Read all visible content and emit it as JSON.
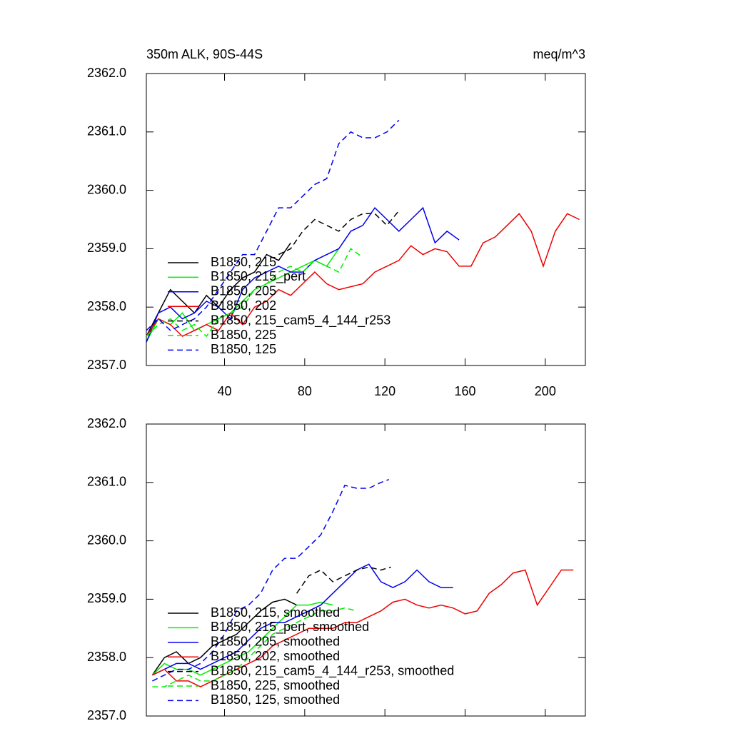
{
  "chart_data": [
    {
      "type": "line",
      "title": "350m ALK, 90S-44S",
      "right_title": "meq/m^3",
      "xlim": [
        1,
        220
      ],
      "xticks": [
        40,
        80,
        120,
        160,
        200
      ],
      "ylim": [
        2357,
        2362
      ],
      "yticks": [
        {
          "value": 2357,
          "label": "2357.0"
        },
        {
          "value": 2358,
          "label": "2358.0"
        },
        {
          "value": 2359,
          "label": "2359.0"
        },
        {
          "value": 2360,
          "label": "2360.0"
        },
        {
          "value": 2361,
          "label": "2361.0"
        },
        {
          "value": 2362,
          "label": "2362.0"
        }
      ],
      "series": [
        {
          "name": "B1850, 215",
          "color": "#000000",
          "dash": false,
          "x": [
            1,
            7,
            13,
            19,
            25,
            31,
            37,
            43,
            49,
            55,
            61,
            67,
            73
          ],
          "values": [
            2357.5,
            2357.9,
            2358.3,
            2358.1,
            2357.9,
            2358.2,
            2358.0,
            2358.3,
            2358.5,
            2358.6,
            2358.9,
            2358.8,
            2359.1
          ]
        },
        {
          "name": "B1850, 215_pert",
          "color": "#00ee00",
          "dash": false,
          "x": [
            1,
            7,
            13,
            19,
            25,
            31,
            37,
            43,
            49,
            55,
            61,
            67,
            73,
            79,
            85,
            91,
            97
          ],
          "values": [
            2357.4,
            2357.8,
            2357.7,
            2357.9,
            2357.6,
            2357.7,
            2357.8,
            2357.9,
            2358.1,
            2358.3,
            2358.4,
            2358.5,
            2358.6,
            2358.7,
            2358.8,
            2358.7,
            2359.0
          ]
        },
        {
          "name": "B1850, 205",
          "color": "#0000ee",
          "dash": false,
          "x": [
            1,
            7,
            13,
            19,
            25,
            31,
            37,
            43,
            49,
            55,
            61,
            67,
            73,
            79,
            85,
            91,
            97,
            103,
            109,
            115,
            121,
            127,
            133,
            139,
            145,
            151,
            157
          ],
          "values": [
            2357.4,
            2357.9,
            2358.0,
            2357.8,
            2357.9,
            2358.1,
            2358.0,
            2357.8,
            2358.3,
            2358.5,
            2358.6,
            2358.7,
            2358.6,
            2358.6,
            2358.8,
            2358.9,
            2359.0,
            2359.3,
            2359.4,
            2359.7,
            2359.5,
            2359.3,
            2359.5,
            2359.7,
            2359.1,
            2359.3,
            2359.15
          ]
        },
        {
          "name": "B1850, 202",
          "color": "#ee0000",
          "dash": false,
          "x": [
            1,
            7,
            13,
            19,
            25,
            31,
            37,
            43,
            49,
            55,
            61,
            67,
            73,
            79,
            85,
            91,
            97,
            103,
            109,
            115,
            121,
            127,
            133,
            139,
            145,
            151,
            157,
            163,
            169,
            175,
            181,
            187,
            193,
            199,
            205,
            211,
            217
          ],
          "values": [
            2357.5,
            2357.8,
            2357.7,
            2357.5,
            2357.6,
            2357.7,
            2357.6,
            2357.9,
            2357.7,
            2358.0,
            2358.1,
            2358.3,
            2358.2,
            2358.4,
            2358.6,
            2358.4,
            2358.3,
            2358.35,
            2358.4,
            2358.6,
            2358.7,
            2358.8,
            2359.05,
            2358.9,
            2359.0,
            2358.95,
            2358.7,
            2358.7,
            2359.1,
            2359.2,
            2359.4,
            2359.6,
            2359.3,
            2358.7,
            2359.3,
            2359.6,
            2359.5
          ]
        },
        {
          "name": "B1850, 215_cam5_4_144_r253",
          "color": "#000000",
          "dash": true,
          "x": [
            67,
            73,
            79,
            85,
            91,
            97,
            103,
            109,
            115,
            121,
            127
          ],
          "values": [
            2358.9,
            2359.0,
            2359.3,
            2359.5,
            2359.4,
            2359.3,
            2359.5,
            2359.6,
            2359.6,
            2359.4,
            2359.65
          ]
        },
        {
          "name": "B1850, 225",
          "color": "#00ee00",
          "dash": true,
          "x": [
            1,
            7,
            13,
            19,
            25,
            31,
            37,
            43,
            49,
            55,
            61,
            67,
            73,
            79,
            85,
            91,
            97,
            103,
            109
          ],
          "values": [
            2357.5,
            2357.7,
            2357.8,
            2357.6,
            2357.7,
            2357.5,
            2357.8,
            2357.9,
            2358.0,
            2358.3,
            2358.4,
            2358.6,
            2358.7,
            2358.6,
            2358.8,
            2358.7,
            2358.6,
            2359.0,
            2358.85
          ]
        },
        {
          "name": "B1850, 125",
          "color": "#0000ee",
          "dash": true,
          "x": [
            1,
            7,
            13,
            19,
            25,
            31,
            37,
            43,
            49,
            55,
            61,
            67,
            73,
            79,
            85,
            91,
            97,
            103,
            109,
            115,
            121,
            127
          ],
          "values": [
            2357.6,
            2357.8,
            2357.6,
            2357.7,
            2357.8,
            2358.0,
            2358.3,
            2358.6,
            2358.9,
            2358.9,
            2359.3,
            2359.7,
            2359.7,
            2359.9,
            2360.1,
            2360.2,
            2360.8,
            2361.0,
            2360.9,
            2360.9,
            2361.0,
            2361.2
          ]
        }
      ]
    },
    {
      "type": "line",
      "xlim": [
        1,
        220
      ],
      "xticks": [
        40,
        80,
        120,
        160,
        200
      ],
      "ylim": [
        2357,
        2362
      ],
      "yticks": [
        {
          "value": 2357,
          "label": "2357.0"
        },
        {
          "value": 2358,
          "label": "2358.0"
        },
        {
          "value": 2359,
          "label": "2359.0"
        },
        {
          "value": 2360,
          "label": "2360.0"
        },
        {
          "value": 2361,
          "label": "2361.0"
        },
        {
          "value": 2362,
          "label": "2362.0"
        }
      ],
      "series": [
        {
          "name": "B1850, 215, smoothed",
          "color": "#000000",
          "dash": false,
          "x": [
            4,
            10,
            16,
            22,
            28,
            34,
            40,
            46,
            52,
            58,
            64,
            70,
            76
          ],
          "values": [
            2357.7,
            2358.0,
            2358.1,
            2357.9,
            2358.0,
            2358.2,
            2358.3,
            2358.4,
            2358.6,
            2358.8,
            2358.95,
            2359.0,
            2358.9
          ]
        },
        {
          "name": "B1850, 215_pert, smoothed",
          "color": "#00ee00",
          "dash": false,
          "x": [
            4,
            10,
            16,
            22,
            28,
            34,
            40,
            46,
            52,
            58,
            64,
            70,
            76,
            82,
            88,
            94
          ],
          "values": [
            2357.7,
            2357.9,
            2357.8,
            2357.8,
            2357.7,
            2357.8,
            2357.9,
            2358.0,
            2358.1,
            2358.3,
            2358.5,
            2358.7,
            2358.9,
            2358.9,
            2358.95,
            2358.9
          ]
        },
        {
          "name": "B1850, 205, smoothed",
          "color": "#0000ee",
          "dash": false,
          "x": [
            4,
            10,
            16,
            22,
            28,
            34,
            40,
            46,
            52,
            58,
            64,
            70,
            76,
            82,
            88,
            94,
            100,
            106,
            112,
            118,
            124,
            130,
            136,
            142,
            148,
            154
          ],
          "values": [
            2357.7,
            2357.8,
            2357.9,
            2357.9,
            2357.8,
            2357.9,
            2358.0,
            2358.1,
            2358.3,
            2358.5,
            2358.6,
            2358.6,
            2358.7,
            2358.8,
            2358.9,
            2359.1,
            2359.3,
            2359.5,
            2359.6,
            2359.3,
            2359.2,
            2359.3,
            2359.5,
            2359.3,
            2359.2,
            2359.2
          ]
        },
        {
          "name": "B1850, 202, smoothed",
          "color": "#ee0000",
          "dash": false,
          "x": [
            4,
            10,
            16,
            22,
            28,
            34,
            40,
            46,
            52,
            58,
            64,
            70,
            76,
            82,
            88,
            94,
            100,
            106,
            112,
            118,
            124,
            130,
            136,
            142,
            148,
            154,
            160,
            166,
            172,
            178,
            184,
            190,
            196,
            202,
            208,
            214
          ],
          "values": [
            2357.7,
            2357.8,
            2357.6,
            2357.6,
            2357.5,
            2357.6,
            2357.7,
            2357.8,
            2357.9,
            2358.0,
            2358.2,
            2358.3,
            2358.4,
            2358.5,
            2358.5,
            2358.5,
            2358.6,
            2358.6,
            2358.7,
            2358.8,
            2358.95,
            2359.0,
            2358.9,
            2358.85,
            2358.9,
            2358.85,
            2358.75,
            2358.8,
            2359.1,
            2359.25,
            2359.45,
            2359.5,
            2358.9,
            2359.2,
            2359.5,
            2359.5
          ]
        },
        {
          "name": "B1850, 215_cam5_4_144_r253, smoothed",
          "color": "#000000",
          "dash": true,
          "x": [
            76,
            82,
            88,
            94,
            100,
            106,
            112,
            118,
            123
          ],
          "values": [
            2359.1,
            2359.4,
            2359.5,
            2359.3,
            2359.4,
            2359.5,
            2359.55,
            2359.5,
            2359.55
          ]
        },
        {
          "name": "B1850, 225, smoothed",
          "color": "#00ee00",
          "dash": true,
          "x": [
            4,
            10,
            16,
            22,
            28,
            34,
            40,
            46,
            52,
            58,
            64,
            70,
            76,
            82,
            88,
            94,
            100,
            106
          ],
          "values": [
            2357.5,
            2357.5,
            2357.6,
            2357.7,
            2357.6,
            2357.6,
            2357.7,
            2357.8,
            2358.0,
            2358.2,
            2358.4,
            2358.5,
            2358.6,
            2358.7,
            2358.8,
            2358.8,
            2358.85,
            2358.8
          ]
        },
        {
          "name": "B1850, 125, smoothed",
          "color": "#0000ee",
          "dash": true,
          "x": [
            4,
            10,
            16,
            22,
            28,
            34,
            40,
            46,
            52,
            58,
            64,
            70,
            76,
            82,
            88,
            94,
            100,
            106,
            112,
            118,
            122
          ],
          "values": [
            2357.6,
            2357.7,
            2357.8,
            2357.8,
            2357.9,
            2358.1,
            2358.4,
            2358.8,
            2358.9,
            2359.1,
            2359.5,
            2359.7,
            2359.7,
            2359.9,
            2360.1,
            2360.5,
            2360.95,
            2360.9,
            2360.9,
            2361.0,
            2361.05
          ]
        }
      ]
    }
  ]
}
